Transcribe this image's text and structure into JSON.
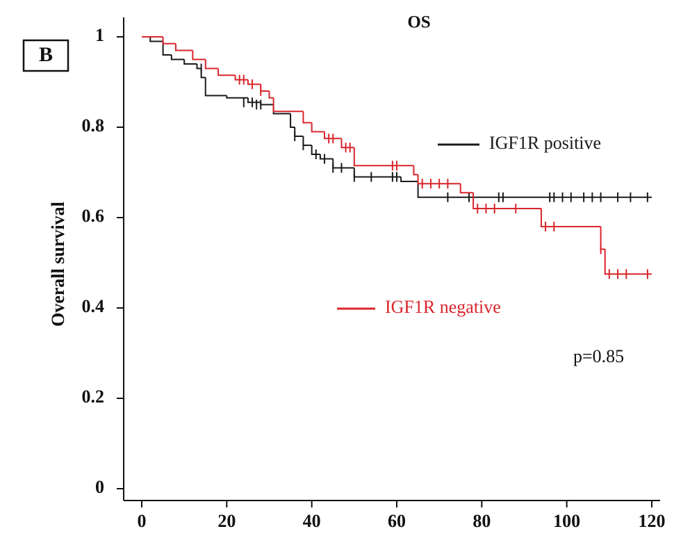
{
  "chart_data": {
    "type": "step",
    "panel_label": "B",
    "title": "OS",
    "ylabel": "Overall survival",
    "annotation": "p=0.85",
    "xlim": [
      0,
      120
    ],
    "ylim": [
      0,
      1
    ],
    "xticks": [
      0,
      20,
      40,
      60,
      80,
      100,
      120
    ],
    "yticks": [
      0,
      0.2,
      0.4,
      0.6,
      0.8,
      1
    ],
    "series": [
      {
        "name": "IGF1R positive",
        "color": "#1a1a1a",
        "x": [
          0,
          2,
          5,
          7,
          10,
          13,
          14,
          15,
          20,
          25,
          28,
          31,
          35,
          36,
          38,
          40,
          42,
          45,
          50,
          61,
          65,
          120
        ],
        "values": [
          1,
          0.99,
          0.96,
          0.95,
          0.94,
          0.93,
          0.91,
          0.87,
          0.865,
          0.855,
          0.85,
          0.83,
          0.8,
          0.78,
          0.76,
          0.74,
          0.73,
          0.71,
          0.69,
          0.68,
          0.645,
          0.645
        ],
        "censored": {
          "x": [
            14,
            24,
            26,
            27,
            28,
            36,
            38,
            41,
            43,
            45,
            47,
            50,
            54,
            59,
            60,
            72,
            77,
            84,
            85,
            96,
            97,
            99,
            101,
            104,
            106,
            108,
            112,
            115,
            119
          ],
          "values": [
            0.93,
            0.855,
            0.855,
            0.85,
            0.85,
            0.78,
            0.76,
            0.74,
            0.73,
            0.71,
            0.71,
            0.69,
            0.69,
            0.69,
            0.69,
            0.645,
            0.645,
            0.645,
            0.645,
            0.645,
            0.645,
            0.645,
            0.645,
            0.645,
            0.645,
            0.645,
            0.645,
            0.645,
            0.645
          ]
        }
      },
      {
        "name": "IGF1R negative",
        "color": "#d9252b",
        "x": [
          0,
          5,
          8,
          12,
          15,
          18,
          22,
          25,
          28,
          30,
          31,
          38,
          40,
          43,
          47,
          50,
          64,
          65,
          75,
          78,
          94,
          108,
          109,
          120
        ],
        "values": [
          1,
          0.985,
          0.97,
          0.95,
          0.93,
          0.915,
          0.905,
          0.895,
          0.88,
          0.865,
          0.835,
          0.81,
          0.79,
          0.775,
          0.755,
          0.715,
          0.695,
          0.675,
          0.655,
          0.62,
          0.58,
          0.53,
          0.475,
          0.475
        ],
        "censored": {
          "x": [
            23,
            24,
            26,
            28,
            44,
            45,
            48,
            49,
            59,
            60,
            66,
            68,
            70,
            72,
            79,
            81,
            83,
            88,
            95,
            97,
            108,
            110,
            112,
            114,
            119
          ],
          "values": [
            0.905,
            0.905,
            0.895,
            0.88,
            0.775,
            0.775,
            0.755,
            0.755,
            0.715,
            0.715,
            0.675,
            0.675,
            0.675,
            0.675,
            0.62,
            0.62,
            0.62,
            0.62,
            0.58,
            0.58,
            0.53,
            0.475,
            0.475,
            0.475,
            0.475
          ]
        }
      }
    ]
  }
}
